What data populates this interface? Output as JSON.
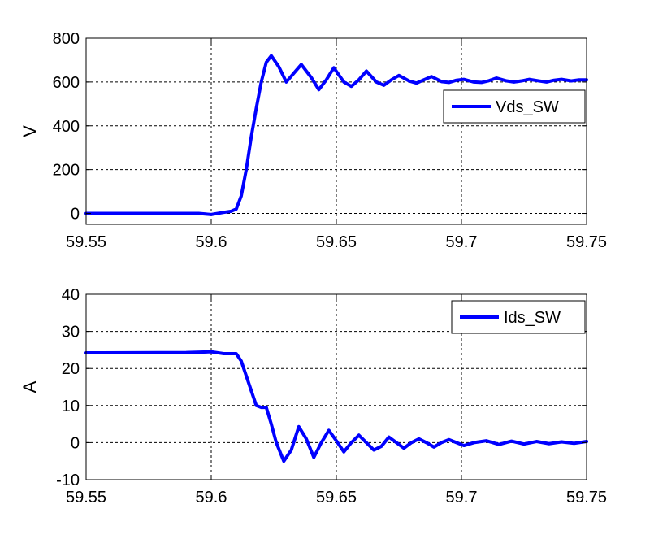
{
  "chart_data": [
    {
      "type": "line",
      "ylabel": "V",
      "xlim": [
        59.55,
        59.75
      ],
      "ylim": [
        -50,
        800
      ],
      "xticks": [
        59.55,
        59.6,
        59.65,
        59.7,
        59.75
      ],
      "xtick_labels": [
        "59.55",
        "59.6",
        "59.65",
        "59.7",
        "59.75"
      ],
      "yticks": [
        0,
        200,
        400,
        600,
        800
      ],
      "ytick_labels": [
        "0",
        "200",
        "400",
        "600",
        "800"
      ],
      "grid": true,
      "legend_position": "top-right",
      "line_color": "#0000ff",
      "series": [
        {
          "name": "Vds_SW",
          "x": [
            59.55,
            59.59,
            59.595,
            59.6,
            59.605,
            59.608,
            59.61,
            59.612,
            59.614,
            59.616,
            59.618,
            59.62,
            59.622,
            59.624,
            59.627,
            59.63,
            59.633,
            59.636,
            59.64,
            59.643,
            59.646,
            59.649,
            59.653,
            59.656,
            59.659,
            59.662,
            59.666,
            59.669,
            59.672,
            59.675,
            59.679,
            59.682,
            59.685,
            59.688,
            59.692,
            59.695,
            59.698,
            59.701,
            59.705,
            59.708,
            59.711,
            59.714,
            59.718,
            59.721,
            59.724,
            59.727,
            59.731,
            59.734,
            59.737,
            59.74,
            59.744,
            59.747,
            59.75
          ],
          "y": [
            0,
            0,
            0,
            -5,
            5,
            10,
            20,
            80,
            200,
            350,
            480,
            600,
            690,
            720,
            670,
            600,
            640,
            680,
            620,
            565,
            610,
            665,
            600,
            580,
            610,
            650,
            600,
            585,
            610,
            630,
            605,
            595,
            610,
            625,
            602,
            598,
            608,
            612,
            600,
            598,
            606,
            618,
            605,
            600,
            605,
            612,
            605,
            600,
            608,
            612,
            605,
            610,
            610
          ]
        }
      ]
    },
    {
      "type": "line",
      "ylabel": "A",
      "xlim": [
        59.55,
        59.75
      ],
      "ylim": [
        -10,
        40
      ],
      "xticks": [
        59.55,
        59.6,
        59.65,
        59.7,
        59.75
      ],
      "xtick_labels": [
        "59.55",
        "59.6",
        "59.65",
        "59.7",
        "59.75"
      ],
      "yticks": [
        -10,
        0,
        10,
        20,
        30,
        40
      ],
      "ytick_labels": [
        "-10",
        "0",
        "10",
        "20",
        "30",
        "40"
      ],
      "grid": true,
      "legend_position": "top-right",
      "line_color": "#0000ff",
      "series": [
        {
          "name": "Ids_SW",
          "x": [
            59.55,
            59.59,
            59.6,
            59.605,
            59.61,
            59.612,
            59.614,
            59.616,
            59.618,
            59.62,
            59.622,
            59.624,
            59.626,
            59.629,
            59.632,
            59.635,
            59.638,
            59.641,
            59.644,
            59.647,
            59.65,
            59.653,
            59.656,
            59.659,
            59.662,
            59.665,
            59.668,
            59.671,
            59.674,
            59.677,
            59.68,
            59.683,
            59.686,
            59.689,
            59.692,
            59.695,
            59.698,
            59.701,
            59.705,
            59.71,
            59.715,
            59.72,
            59.725,
            59.73,
            59.735,
            59.74,
            59.745,
            59.75
          ],
          "y": [
            24.2,
            24.3,
            24.5,
            24.0,
            24.0,
            22.0,
            18.0,
            14.0,
            10.0,
            9.5,
            9.5,
            5.0,
            0.0,
            -5.0,
            -2.0,
            4.3,
            1.0,
            -4.0,
            0.0,
            3.3,
            0.5,
            -2.5,
            0.0,
            2.0,
            0.0,
            -2.0,
            -1.0,
            1.5,
            0.0,
            -1.5,
            0.0,
            1.0,
            0.0,
            -1.2,
            0.0,
            0.8,
            0.0,
            -0.8,
            0.0,
            0.5,
            -0.5,
            0.4,
            -0.4,
            0.3,
            -0.3,
            0.2,
            -0.2,
            0.3
          ]
        }
      ]
    }
  ]
}
